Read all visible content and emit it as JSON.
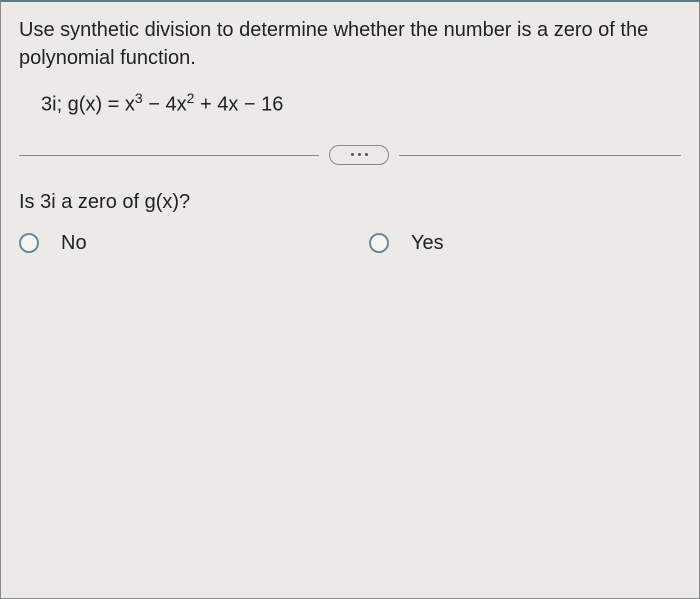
{
  "instructions": "Use synthetic division to determine whether the number is a zero of the polynomial function.",
  "equation": {
    "prefix": "3i; g(x) = x",
    "exp1": "3",
    "mid1": " − 4x",
    "exp2": "2",
    "mid2": " + 4x − 16"
  },
  "question": "Is 3i a zero of g(x)?",
  "options": {
    "no": "No",
    "yes": "Yes"
  }
}
